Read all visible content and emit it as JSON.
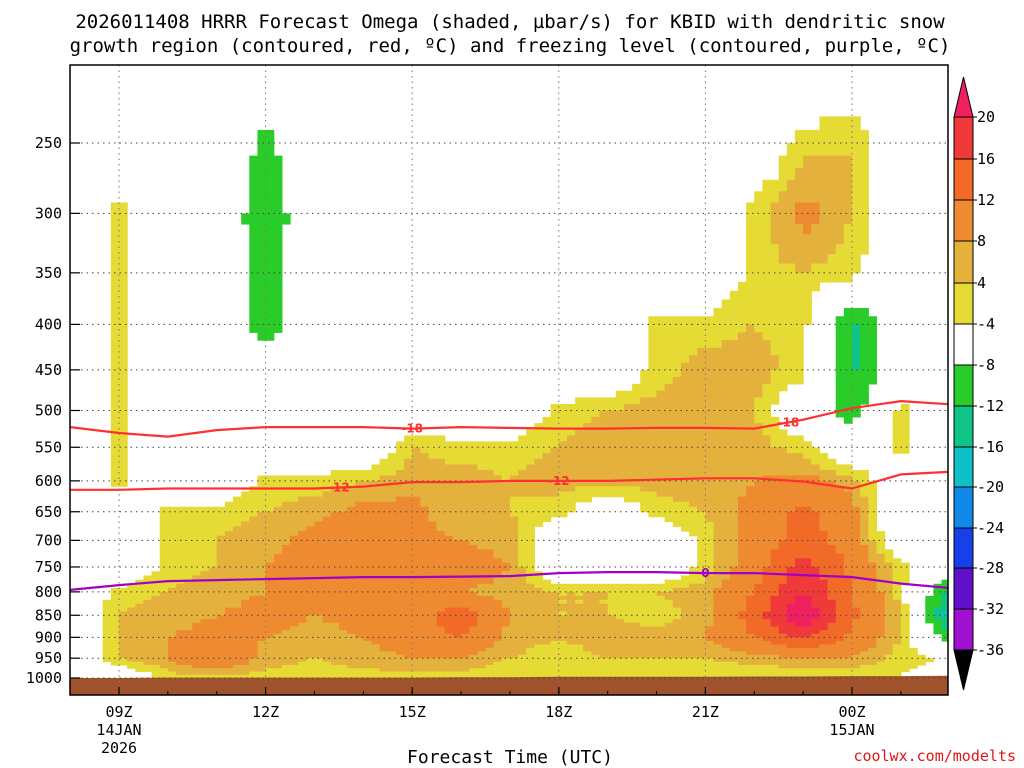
{
  "chart_data": {
    "type": "contour",
    "title_line1": "2026011408 HRRR Forecast Omega (shaded, µbar/s) for KBID with dendritic snow",
    "title_line2": "growth region (contoured, red, ºC) and freezing level (contoured, purple, ºC)",
    "xlabel": "Forecast Time (UTC)",
    "credit": "coolwx.com/modelts",
    "x_hours": [
      8,
      9,
      10,
      11,
      12,
      13,
      14,
      15,
      16,
      17,
      18,
      19,
      20,
      21,
      22,
      23,
      24,
      25,
      26
    ],
    "x_ticks": [
      {
        "h": 9,
        "label": "09Z",
        "sub1": "14JAN",
        "sub2": "2026"
      },
      {
        "h": 12,
        "label": "12Z",
        "sub1": "",
        "sub2": ""
      },
      {
        "h": 15,
        "label": "15Z",
        "sub1": "",
        "sub2": ""
      },
      {
        "h": 18,
        "label": "18Z",
        "sub1": "",
        "sub2": ""
      },
      {
        "h": 21,
        "label": "21Z",
        "sub1": "",
        "sub2": ""
      },
      {
        "h": 24,
        "label": "00Z",
        "sub1": "15JAN",
        "sub2": ""
      }
    ],
    "x_range": [
      8.0,
      25.95
    ],
    "y_ticks": [
      250,
      300,
      350,
      400,
      450,
      500,
      550,
      600,
      650,
      700,
      750,
      800,
      850,
      900,
      950,
      1000
    ],
    "y_range_hPa": [
      200,
      1000
    ],
    "levels": [
      200,
      250,
      300,
      350,
      400,
      450,
      500,
      550,
      600,
      650,
      700,
      750,
      800,
      850,
      900,
      950,
      1000
    ],
    "surface_pressure_hPa": [
      1000,
      1000,
      999,
      999,
      999,
      999,
      999,
      999,
      998,
      998,
      997,
      997,
      997,
      997,
      996,
      996,
      995,
      995,
      994
    ],
    "omega": [
      [
        0,
        0,
        0,
        0,
        0,
        0,
        0,
        0,
        0,
        0,
        0,
        0,
        0,
        0,
        0,
        0,
        0,
        0,
        0
      ],
      [
        0,
        0,
        0,
        0,
        -5,
        0,
        0,
        0,
        0,
        0,
        0,
        0,
        0,
        0,
        0,
        5,
        6,
        0,
        0
      ],
      [
        0,
        5,
        0,
        0,
        -7,
        0,
        0,
        0,
        0,
        0,
        0,
        0,
        0,
        0,
        5,
        9,
        6,
        0,
        0
      ],
      [
        0,
        5,
        0,
        0,
        -6,
        0,
        0,
        0,
        0,
        0,
        0,
        0,
        0,
        0,
        5,
        6,
        5,
        0,
        0
      ],
      [
        0,
        5,
        0,
        0,
        -6,
        0,
        0,
        0,
        0,
        0,
        0,
        0,
        5,
        5,
        6,
        5,
        -9,
        0,
        0
      ],
      [
        0,
        5,
        0,
        0,
        0,
        0,
        0,
        0,
        0,
        0,
        0,
        0,
        5,
        7,
        7,
        5,
        -9,
        0,
        0
      ],
      [
        0,
        5,
        0,
        0,
        0,
        0,
        0,
        0,
        0,
        0,
        5,
        6,
        7,
        7,
        6,
        0,
        -6,
        5,
        0
      ],
      [
        0,
        5,
        0,
        0,
        0,
        0,
        0,
        6,
        5,
        5,
        6,
        7,
        7,
        7,
        7,
        5,
        0,
        5,
        0
      ],
      [
        0,
        5,
        0,
        0,
        5,
        5,
        6,
        7,
        7,
        6,
        7,
        7,
        7,
        7,
        8,
        9,
        7,
        0,
        0
      ],
      [
        0,
        0,
        5,
        5,
        6,
        7,
        9,
        9,
        6,
        6,
        5,
        0,
        5,
        6,
        9,
        13,
        9,
        0,
        0
      ],
      [
        0,
        0,
        5,
        6,
        7,
        9,
        12,
        9,
        8,
        7,
        0,
        0,
        0,
        5,
        9,
        14,
        10,
        0,
        0
      ],
      [
        0,
        0,
        5,
        6,
        8,
        10,
        12,
        10,
        10,
        8,
        0,
        0,
        0,
        5,
        10,
        18,
        11,
        5,
        0
      ],
      [
        0,
        5,
        6,
        7,
        8,
        9,
        10,
        10,
        8,
        7,
        6,
        6,
        6,
        7,
        12,
        20,
        12,
        5,
        -10
      ],
      [
        0,
        6,
        7,
        8,
        9,
        8,
        9,
        10,
        15,
        8,
        6,
        6,
        5,
        7,
        14,
        24,
        13,
        6,
        -14
      ],
      [
        0,
        6,
        8,
        9,
        8,
        7,
        8,
        10,
        12,
        7,
        6,
        7,
        7,
        8,
        12,
        17,
        11,
        6,
        -6
      ],
      [
        0,
        6,
        8,
        12,
        7,
        6,
        7,
        8,
        8,
        6,
        5,
        6,
        6,
        6,
        7,
        8,
        8,
        5,
        4
      ],
      [
        0,
        0,
        5,
        5,
        5,
        5,
        5,
        5,
        5,
        4,
        4,
        4,
        4,
        4,
        4,
        4,
        4,
        4,
        0
      ]
    ],
    "contours": [
      {
        "name": "dgz-minus18",
        "label": "-18",
        "color": "#ff3030",
        "pressure": [
          522,
          530,
          535,
          526,
          522,
          522,
          522,
          524,
          522,
          523,
          524,
          524,
          523,
          523,
          524,
          512,
          497,
          488,
          492
        ],
        "label_hours": [
          15,
          22.7
        ]
      },
      {
        "name": "dgz-minus12",
        "label": "-12",
        "color": "#ff3030",
        "pressure": [
          614,
          614,
          612,
          612,
          612,
          612,
          609,
          602,
          602,
          600,
          600,
          600,
          598,
          596,
          596,
          601,
          612,
          590,
          586
        ],
        "label_hours": [
          13.5,
          18
        ]
      },
      {
        "name": "freezing-level",
        "label": "0",
        "color": "#a000c8",
        "pressure": [
          796,
          786,
          778,
          776,
          774,
          772,
          770,
          770,
          769,
          768,
          762,
          760,
          760,
          762,
          762,
          766,
          770,
          783,
          792
        ],
        "label_hours": [
          21
        ]
      }
    ],
    "colorbar": {
      "labels": [
        "20",
        "16",
        "12",
        "8",
        "4",
        "-4",
        "-8",
        "-12",
        "-16",
        "-20",
        "-24",
        "-28",
        "-32",
        "-36"
      ],
      "colors": [
        "#f02060",
        "#f03a3a",
        "#f26a28",
        "#ee8a30",
        "#e4b23c",
        "#e6da34",
        "#ffffff",
        "#2acc2a",
        "#10c488",
        "#10c0c8",
        "#108ae8",
        "#1840e8",
        "#6010c8",
        "#a010d0",
        "#a8a8a8",
        "#000000"
      ],
      "omega_thresholds": [
        24,
        20,
        16,
        12,
        8,
        4,
        -4,
        -8,
        -12,
        -16,
        -20,
        -24,
        -28,
        -32,
        -36
      ]
    },
    "ground_color": "#a0522d"
  }
}
